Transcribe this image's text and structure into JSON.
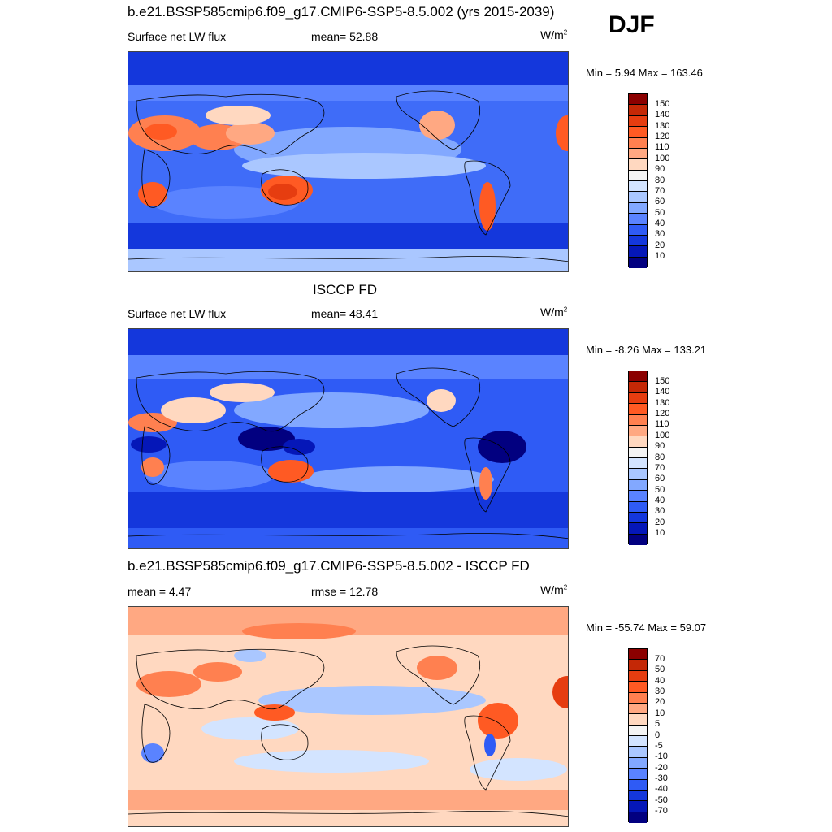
{
  "season": "DJF",
  "panels": [
    {
      "title": "b.e21.BSSP585cmip6.f09_g17.CMIP6-SSP5-8.5.002 (yrs 2015-2039)",
      "left_label": "Surface net LW flux",
      "center_label": "mean=  52.88",
      "units": "W/m",
      "units_sup": "2",
      "minmax": "Min =   5.94 Max = 163.46",
      "colorbar": {
        "labels": [
          "150",
          "140",
          "130",
          "120",
          "110",
          "100",
          "90",
          "80",
          "70",
          "60",
          "50",
          "40",
          "30",
          "20",
          "10"
        ],
        "colors": [
          "#8b0000",
          "#c42806",
          "#e63d10",
          "#ff5a23",
          "#ff8050",
          "#ffa882",
          "#ffd8c0",
          "#f4f4f4",
          "#d3e4ff",
          "#aac7ff",
          "#82a8ff",
          "#5a83ff",
          "#2f5bf5",
          "#1437dc",
          "#0517b8",
          "#020080"
        ]
      }
    },
    {
      "title": "ISCCP FD",
      "left_label": "Surface net LW flux",
      "center_label": "mean=  48.41",
      "units": "W/m",
      "units_sup": "2",
      "minmax": "Min =  -8.26 Max = 133.21",
      "colorbar": {
        "labels": [
          "150",
          "140",
          "130",
          "120",
          "110",
          "100",
          "90",
          "80",
          "70",
          "60",
          "50",
          "40",
          "30",
          "20",
          "10"
        ],
        "colors": [
          "#8b0000",
          "#c42806",
          "#e63d10",
          "#ff5a23",
          "#ff8050",
          "#ffa882",
          "#ffd8c0",
          "#f4f4f4",
          "#d3e4ff",
          "#aac7ff",
          "#82a8ff",
          "#5a83ff",
          "#2f5bf5",
          "#1437dc",
          "#0517b8",
          "#020080"
        ]
      }
    },
    {
      "title": "b.e21.BSSP585cmip6.f09_g17.CMIP6-SSP5-8.5.002 - ISCCP FD",
      "left_label": "mean =   4.47",
      "center_label": "rmse =  12.78",
      "units": "W/m",
      "units_sup": "2",
      "minmax": "Min = -55.74 Max =  59.07",
      "colorbar": {
        "labels": [
          "70",
          "50",
          "40",
          "30",
          "20",
          "10",
          "5",
          "0",
          "-5",
          "-10",
          "-20",
          "-30",
          "-40",
          "-50",
          "-70"
        ],
        "colors": [
          "#8b0000",
          "#c42806",
          "#e63d10",
          "#ff5a23",
          "#ff8050",
          "#ffa882",
          "#ffd8c0",
          "#f4f4f4",
          "#d3e4ff",
          "#aac7ff",
          "#82a8ff",
          "#5a83ff",
          "#2f5bf5",
          "#1437dc",
          "#0517b8",
          "#020080"
        ]
      }
    }
  ]
}
